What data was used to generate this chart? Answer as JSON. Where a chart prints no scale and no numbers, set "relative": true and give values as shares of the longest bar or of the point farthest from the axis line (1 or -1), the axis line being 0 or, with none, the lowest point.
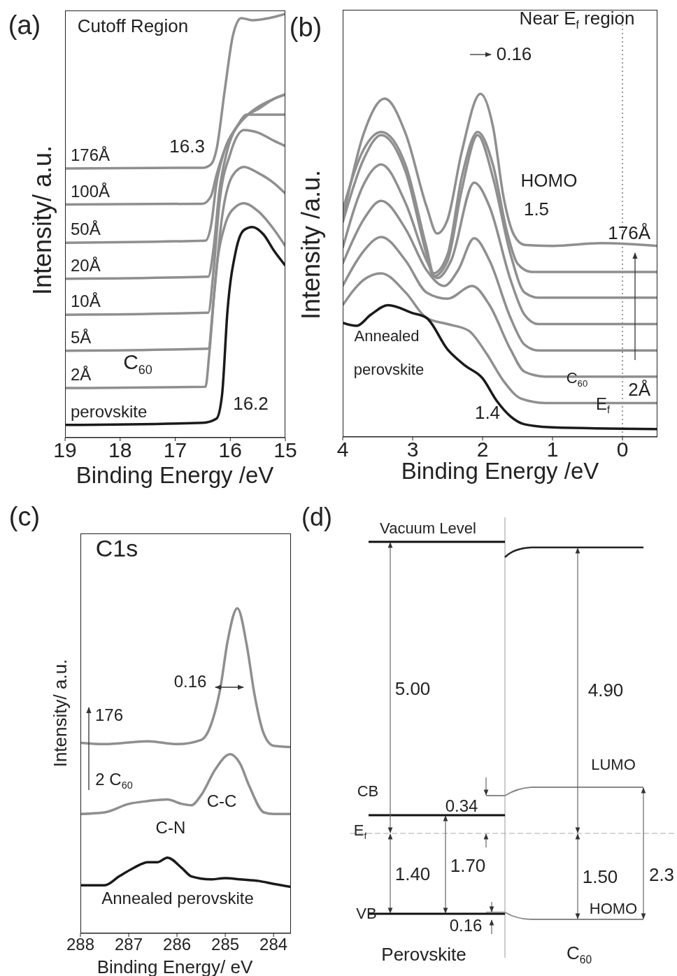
{
  "chart_data": [
    {
      "type": "line",
      "title": "Cutoff Region",
      "xlabel": "Binding Energy /eV",
      "ylabel": "Intensity/ a.u.",
      "xlim": [
        19,
        15
      ],
      "xticks": [
        19,
        18,
        17,
        16,
        15
      ],
      "relative": true,
      "series": [
        {
          "name": "176Å",
          "color": "#8f8f8f",
          "x": [
            19,
            16.5,
            16.35,
            16.25,
            16.1,
            15.95,
            15.8,
            15.6,
            15.3,
            15
          ],
          "values": [
            0.635,
            0.637,
            0.645,
            0.68,
            0.82,
            0.95,
            0.99,
            0.985,
            0.99,
            1.0
          ]
        },
        {
          "name": "100Å",
          "color": "#8f8f8f",
          "x": [
            19,
            16.5,
            16.35,
            16.25,
            16.1,
            15.9,
            15.7,
            15.5,
            15.2,
            15
          ],
          "values": [
            0.55,
            0.552,
            0.57,
            0.62,
            0.68,
            0.73,
            0.76,
            0.78,
            0.8,
            0.81
          ]
        },
        {
          "name": "50Å",
          "color": "#8f8f8f",
          "x": [
            19,
            16.45,
            16.35,
            16.25,
            16.1,
            15.9,
            15.7,
            15.5,
            15.2,
            15
          ],
          "values": [
            0.46,
            0.465,
            0.5,
            0.6,
            0.68,
            0.73,
            0.76,
            0.775,
            0.8,
            0.81
          ]
        },
        {
          "name": "20Å",
          "color": "#8f8f8f",
          "x": [
            19,
            16.4,
            16.3,
            16.2,
            16.05,
            15.85,
            15.7,
            15.4,
            15
          ],
          "values": [
            0.375,
            0.38,
            0.45,
            0.58,
            0.68,
            0.74,
            0.762,
            0.762,
            0.762
          ]
        },
        {
          "name": "10Å",
          "color": "#8f8f8f",
          "x": [
            19,
            16.4,
            16.3,
            16.2,
            16.0,
            15.75,
            15.5,
            15.2,
            15
          ],
          "values": [
            0.29,
            0.295,
            0.4,
            0.55,
            0.67,
            0.726,
            0.72,
            0.7,
            0.688
          ]
        },
        {
          "name": "5Å",
          "color": "#8f8f8f",
          "x": [
            19,
            16.4,
            16.3,
            16.15,
            15.95,
            15.75,
            15.5,
            15.2,
            15
          ],
          "values": [
            0.205,
            0.21,
            0.33,
            0.52,
            0.62,
            0.639,
            0.625,
            0.6,
            0.576
          ]
        },
        {
          "name": "2Å",
          "color": "#8f8f8f",
          "x": [
            19,
            16.45,
            16.38,
            16.25,
            16.1,
            15.9,
            15.75,
            15.5,
            15.2,
            15
          ],
          "values": [
            0.117,
            0.12,
            0.2,
            0.4,
            0.5,
            0.545,
            0.553,
            0.535,
            0.49,
            0.452
          ]
        },
        {
          "name": "perovskite",
          "color": "#1a1a1a",
          "x": [
            19,
            16.5,
            16.25,
            16.15,
            16.05,
            15.9,
            15.75,
            15.6,
            15.4,
            15.2,
            15
          ],
          "values": [
            0.03,
            0.035,
            0.045,
            0.1,
            0.3,
            0.44,
            0.49,
            0.497,
            0.48,
            0.44,
            0.406
          ]
        }
      ],
      "annotations": [
        "(a)",
        "C$_{60}$",
        {
          "text": "16.3",
          "x": 16.3,
          "y": 0.635
        },
        {
          "text": "16.2",
          "x": 16.2,
          "y": 0.07
        }
      ]
    },
    {
      "type": "line",
      "title": "Near E$_{f}$ region",
      "xlabel": "Binding Energy /eV",
      "ylabel": "Intensity /a.u.",
      "xlim": [
        4,
        -0.5
      ],
      "xticks": [
        4,
        3,
        2,
        1,
        0
      ],
      "relative": true,
      "series": [
        {
          "name": "176Å",
          "color": "#8f8f8f",
          "x": [
            4,
            3.7,
            3.4,
            3.1,
            2.8,
            2.65,
            2.5,
            2.3,
            2.03,
            1.85,
            1.7,
            1.55,
            1.4,
            1.0,
            0.3,
            -0.5
          ],
          "values": [
            0.634,
            0.884,
            0.986,
            0.884,
            0.671,
            0.593,
            0.634,
            0.829,
            1.0,
            0.903,
            0.699,
            0.588,
            0.56,
            0.557,
            0.565,
            0.557
          ]
        },
        {
          "color": "#8f8f8f",
          "x": [
            4,
            3.7,
            3.45,
            3.1,
            2.8,
            2.7,
            2.5,
            2.3,
            2.07,
            1.85,
            1.65,
            1.5,
            1.3,
            0.5,
            -0.5
          ],
          "values": [
            0.662,
            0.838,
            0.889,
            0.792,
            0.551,
            0.477,
            0.532,
            0.755,
            0.889,
            0.792,
            0.597,
            0.505,
            0.481,
            0.481,
            0.481
          ]
        },
        {
          "color": "#8f8f8f",
          "x": [
            4,
            3.7,
            3.45,
            3.1,
            2.8,
            2.7,
            2.5,
            2.3,
            2.07,
            1.85,
            1.6,
            1.4,
            1.2,
            -0.5
          ],
          "values": [
            0.625,
            0.81,
            0.88,
            0.773,
            0.532,
            0.468,
            0.514,
            0.718,
            0.88,
            0.755,
            0.532,
            0.421,
            0.406,
            0.406
          ]
        },
        {
          "color": "#8f8f8f",
          "x": [
            4,
            3.7,
            3.45,
            3.1,
            2.8,
            2.65,
            2.45,
            2.12,
            1.9,
            1.6,
            1.4,
            1.2,
            -0.5
          ],
          "values": [
            0.551,
            0.736,
            0.794,
            0.681,
            0.514,
            0.463,
            0.514,
            0.741,
            0.671,
            0.458,
            0.356,
            0.329,
            0.329
          ]
        },
        {
          "color": "#8f8f8f",
          "x": [
            4,
            3.7,
            3.45,
            3.1,
            2.8,
            2.55,
            2.35,
            2.12,
            1.9,
            1.6,
            1.4,
            1.2,
            -0.5
          ],
          "values": [
            0.505,
            0.634,
            0.688,
            0.606,
            0.486,
            0.44,
            0.486,
            0.579,
            0.514,
            0.347,
            0.269,
            0.252,
            0.252
          ]
        },
        {
          "color": "#8f8f8f",
          "x": [
            4,
            3.7,
            3.45,
            3.1,
            2.8,
            2.5,
            2.15,
            1.9,
            1.6,
            1.4,
            1.1,
            -0.5
          ],
          "values": [
            0.44,
            0.542,
            0.583,
            0.514,
            0.421,
            0.403,
            0.44,
            0.384,
            0.255,
            0.19,
            0.176,
            0.176
          ]
        },
        {
          "name": "2Å",
          "color": "#8f8f8f",
          "x": [
            4,
            3.7,
            3.45,
            3.1,
            2.8,
            2.5,
            2.2,
            1.95,
            1.7,
            1.45,
            1.1,
            -0.5
          ],
          "values": [
            0.384,
            0.458,
            0.477,
            0.421,
            0.347,
            0.329,
            0.31,
            0.245,
            0.163,
            0.112,
            0.099,
            0.099
          ]
        },
        {
          "color": "#1a1a1a",
          "x": [
            4,
            3.8,
            3.6,
            3.35,
            3.0,
            2.8,
            2.5,
            2.25,
            2.0,
            1.8,
            1.6,
            1.4,
            1.0,
            -0.5
          ],
          "values": [
            0.333,
            0.324,
            0.356,
            0.384,
            0.361,
            0.347,
            0.255,
            0.208,
            0.171,
            0.106,
            0.06,
            0.037,
            0.028,
            0.023
          ]
        }
      ],
      "ref_lines": [
        {
          "axis": "x",
          "value": 0,
          "label": "E$_{f}$",
          "color": "#999999",
          "line_style": "dotted"
        }
      ],
      "annotations": [
        "(b)",
        "0.16",
        "HOMO",
        {
          "text": "1.5",
          "x": 1.5,
          "y": 0.557
        },
        {
          "text": "1.4",
          "x": 1.4,
          "y": 0.037
        },
        "Annealed",
        "perovskite",
        "C$_{60}$"
      ]
    },
    {
      "type": "line",
      "title": "C1s",
      "xlabel": "Binding Energy/ eV",
      "ylabel": "Intensity/ a.u.",
      "xlim": [
        288,
        283.64
      ],
      "xticks": [
        288,
        287,
        286,
        285,
        284
      ],
      "relative": true,
      "series": [
        {
          "color": "#8f8f8f",
          "x": [
            288,
            287.5,
            286.6,
            286,
            285.5,
            285.3,
            285.1,
            284.95,
            284.75,
            284.55,
            284.4,
            284.2,
            284,
            283.64
          ],
          "values": [
            0.586,
            0.582,
            0.591,
            0.582,
            0.595,
            0.64,
            0.756,
            0.9,
            1.0,
            0.882,
            0.739,
            0.613,
            0.577,
            0.573
          ]
        },
        {
          "color": "#8f8f8f",
          "x": [
            288,
            287.5,
            287,
            286.6,
            286.2,
            285.9,
            285.7,
            285.5,
            285.2,
            284.9,
            284.7,
            284.5,
            284.2,
            284,
            283.64
          ],
          "values": [
            0.367,
            0.372,
            0.398,
            0.407,
            0.412,
            0.398,
            0.394,
            0.425,
            0.506,
            0.551,
            0.524,
            0.452,
            0.372,
            0.367,
            0.367
          ]
        },
        {
          "color": "#1a1a1a",
          "x": [
            288,
            287.5,
            287.2,
            286.9,
            286.6,
            286.4,
            286.2,
            285.9,
            285.7,
            285.3,
            285,
            284.7,
            284.3,
            284,
            283.64
          ],
          "values": [
            0.148,
            0.148,
            0.175,
            0.201,
            0.219,
            0.219,
            0.233,
            0.201,
            0.175,
            0.166,
            0.17,
            0.166,
            0.161,
            0.152,
            0.143
          ]
        }
      ],
      "annotations": [
        "(c)",
        "0.16",
        "176",
        "2 C$_{60}$",
        {
          "text": "C-C",
          "x": 284.9,
          "y": 0.551
        },
        {
          "text": "C-N",
          "x": 286.35,
          "y": 0.219
        },
        "Annealed perovskite"
      ]
    },
    {
      "type": "other",
      "annotations": [
        "(d)",
        "Vacuum Level",
        "5.00",
        "4.90",
        "LUMO",
        "CB",
        "0.34",
        "E$_{f}$",
        "1.40",
        "1.70",
        "1.50",
        "2.3",
        "VB",
        "HOMO",
        "0.16",
        "Perovskite",
        "C$_{60}$"
      ]
    }
  ]
}
